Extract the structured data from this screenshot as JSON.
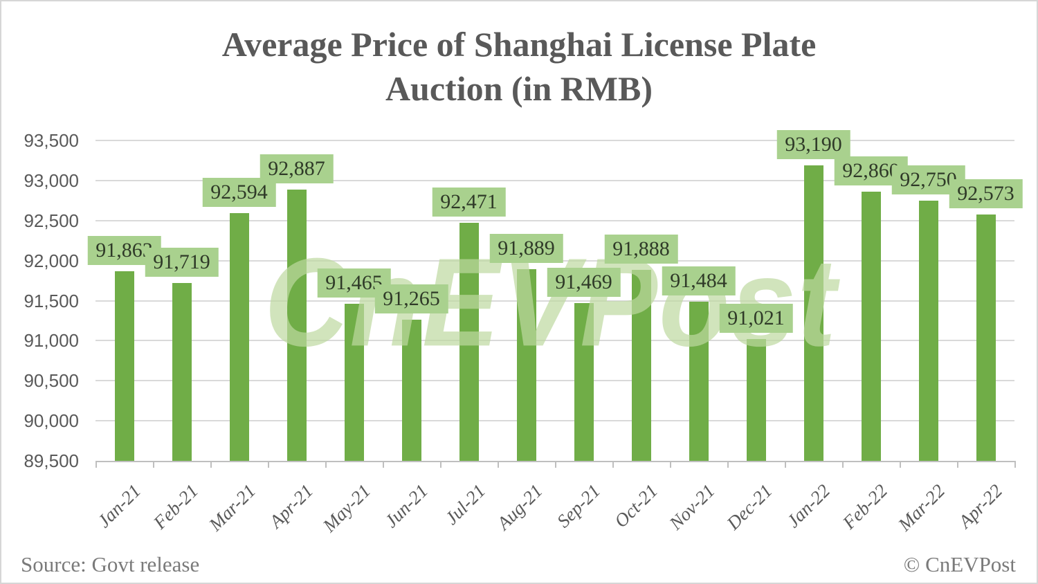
{
  "title": {
    "line1": "Average Price of Shanghai License Plate",
    "line2": "Auction (in RMB)"
  },
  "watermark": "CnEVPost",
  "footer": {
    "source": "Source: Govt release",
    "credit": "© CnEVPost"
  },
  "colors": {
    "bar": "#70ad47",
    "label_bg": "#a9d18e",
    "label_text": "#2f3a28",
    "gridline": "#d9d9d9",
    "axis": "#bfbfbf",
    "tick_text": "#595959",
    "title_text": "#595959",
    "footer_text": "#7a7a7a",
    "watermark_text": "#bed8a0"
  },
  "chart_data": {
    "type": "bar",
    "title": "Average Price of Shanghai License Plate Auction (in RMB)",
    "xlabel": "",
    "ylabel": "",
    "grid": true,
    "legend_position": "none",
    "ylim": [
      89500,
      93500
    ],
    "ytick_step": 500,
    "ytick_labels": [
      "93,500",
      "93,000",
      "92,500",
      "92,000",
      "91,500",
      "91,000",
      "90,500",
      "90,000",
      "89,500"
    ],
    "categories": [
      "Jan-21",
      "Feb-21",
      "Mar-21",
      "Apr-21",
      "May-21",
      "Jun-21",
      "Jul-21",
      "Aug-21",
      "Sep-21",
      "Oct-21",
      "Nov-21",
      "Dec-21",
      "Jan-22",
      "Feb-22",
      "Mar-22",
      "Apr-22"
    ],
    "values": [
      91863,
      91719,
      92594,
      92887,
      91465,
      91265,
      92471,
      91889,
      91469,
      91888,
      91484,
      91021,
      93190,
      92860,
      92750,
      92573
    ],
    "value_labels": [
      "91,863",
      "91,719",
      "92,594",
      "92,887",
      "91,465",
      "91,265",
      "92,471",
      "91,889",
      "91,469",
      "91,888",
      "91,484",
      "91,021",
      "93,190",
      "92,860",
      "92,750",
      "92,573"
    ]
  }
}
